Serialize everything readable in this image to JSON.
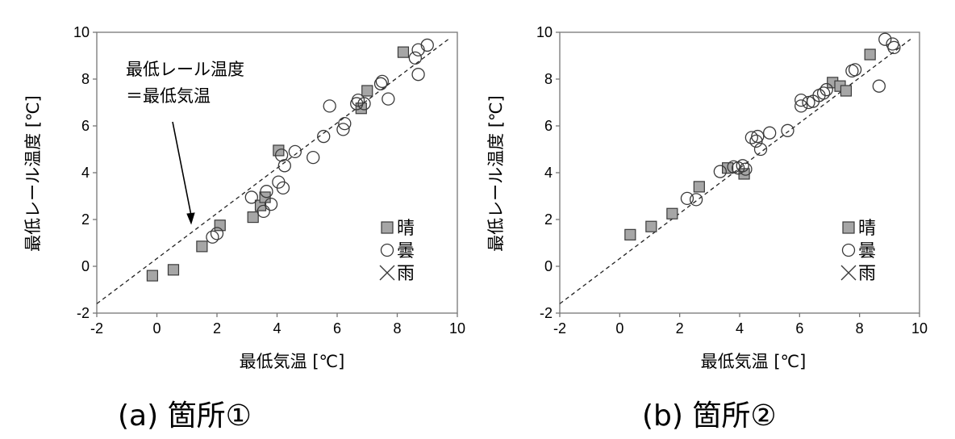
{
  "chart_data": [
    {
      "type": "scatter",
      "caption": "(a) 箇所①",
      "xlabel": "最低気温 [℃]",
      "ylabel": "最低レール温度 [℃]",
      "xlim": [
        -2,
        10
      ],
      "ylim": [
        -2,
        10
      ],
      "xticks": [
        "-2",
        "0",
        "2",
        "4",
        "6",
        "8",
        "10"
      ],
      "yticks": [
        "-2",
        "0",
        "2",
        "4",
        "6",
        "8",
        "10"
      ],
      "reference_line": "y = x (dashed)",
      "annotation": [
        "最低レール温度",
        "＝最低気温"
      ],
      "legend": [
        "晴",
        "曇",
        "雨"
      ],
      "series": [
        {
          "name": "晴",
          "marker": "square",
          "x": [
            -0.15,
            0.55,
            1.5,
            2.1,
            3.2,
            3.45,
            3.6,
            4.05,
            6.8,
            7.0,
            8.2
          ],
          "y": [
            -0.4,
            -0.15,
            0.85,
            1.75,
            2.1,
            2.6,
            2.95,
            4.95,
            6.75,
            7.5,
            9.15
          ]
        },
        {
          "name": "曇",
          "marker": "circle",
          "x": [
            1.85,
            2.0,
            3.15,
            3.55,
            3.65,
            3.8,
            4.05,
            4.15,
            4.2,
            4.25,
            4.6,
            5.2,
            5.55,
            5.75,
            6.2,
            6.25,
            6.65,
            6.7,
            6.9,
            7.45,
            7.5,
            7.7,
            8.6,
            8.7,
            8.7,
            9.0
          ],
          "y": [
            1.25,
            1.4,
            2.95,
            2.35,
            3.2,
            2.65,
            3.6,
            4.75,
            3.35,
            4.3,
            4.9,
            4.65,
            5.55,
            6.85,
            5.85,
            6.1,
            6.95,
            7.1,
            6.95,
            7.8,
            7.9,
            7.15,
            8.9,
            9.25,
            8.2,
            9.45
          ]
        },
        {
          "name": "雨",
          "marker": "x",
          "x": [],
          "y": []
        }
      ]
    },
    {
      "type": "scatter",
      "caption": "(b) 箇所②",
      "xlabel": "最低気温 [℃]",
      "ylabel": "最低レール温度 [℃]",
      "xlim": [
        -2,
        10
      ],
      "ylim": [
        -2,
        10
      ],
      "xticks": [
        "-2",
        "0",
        "2",
        "4",
        "6",
        "8",
        "10"
      ],
      "yticks": [
        "-2",
        "0",
        "2",
        "4",
        "6",
        "8",
        "10"
      ],
      "reference_line": "y = x (dashed)",
      "legend": [
        "晴",
        "曇",
        "雨"
      ],
      "series": [
        {
          "name": "晴",
          "marker": "square",
          "x": [
            0.35,
            1.05,
            1.75,
            2.65,
            3.6,
            4.15,
            7.1,
            7.35,
            7.55,
            8.35
          ],
          "y": [
            1.35,
            1.7,
            2.25,
            3.4,
            4.2,
            3.95,
            7.85,
            7.7,
            7.5,
            9.05
          ]
        },
        {
          "name": "曇",
          "marker": "circle",
          "x": [
            2.25,
            2.55,
            3.35,
            3.8,
            3.95,
            4.1,
            4.2,
            4.4,
            4.55,
            4.6,
            4.7,
            5.0,
            5.6,
            6.05,
            6.05,
            6.3,
            6.45,
            6.65,
            6.8,
            6.9,
            7.75,
            7.85,
            8.65,
            8.85,
            9.1,
            9.15
          ],
          "y": [
            2.9,
            2.85,
            4.05,
            4.25,
            4.2,
            4.3,
            4.15,
            5.5,
            5.35,
            5.55,
            5.0,
            5.7,
            5.8,
            6.85,
            7.1,
            7.0,
            7.05,
            7.3,
            7.4,
            7.55,
            8.35,
            8.4,
            7.7,
            9.7,
            9.5,
            9.35
          ]
        },
        {
          "name": "雨",
          "marker": "x",
          "x": [],
          "y": []
        }
      ]
    }
  ]
}
